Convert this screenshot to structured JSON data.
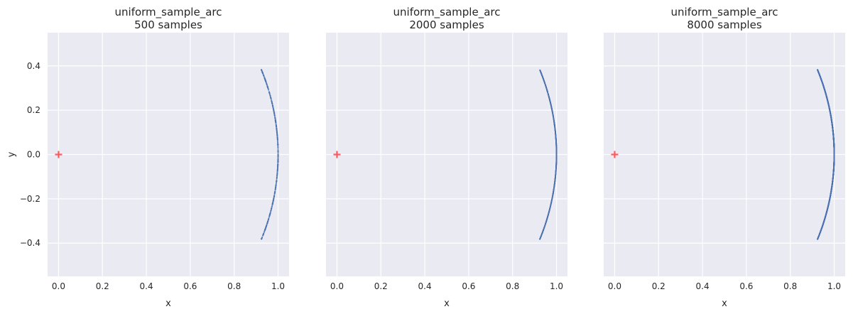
{
  "colors": {
    "plot_background": "#eaeaf2",
    "grid": "#ffffff",
    "sample_points": "#4c72b0",
    "origin_marker": "#ff5a5f",
    "text": "#262626"
  },
  "chart_data": [
    {
      "type": "scatter",
      "title_line1": "uniform_sample_arc",
      "title_line2": "500 samples",
      "xlabel": "x",
      "ylabel": "y",
      "xlim": [
        -0.05,
        1.05
      ],
      "ylim": [
        -0.55,
        0.55
      ],
      "xticks": [
        0.0,
        0.2,
        0.4,
        0.6,
        0.8,
        1.0
      ],
      "xtick_labels": [
        "0.0",
        "0.2",
        "0.4",
        "0.6",
        "0.8",
        "1.0"
      ],
      "yticks": [
        0.4,
        0.2,
        0.0,
        -0.2,
        -0.4
      ],
      "ytick_labels": [
        "0.4",
        "0.2",
        "0.0",
        "−0.2",
        "−0.4"
      ],
      "grid": true,
      "arc": {
        "radius": 1.0,
        "angle_min_deg": -22.5,
        "angle_max_deg": 22.5
      },
      "n_samples": 500,
      "origin_marker": {
        "x": 0.0,
        "y": 0.0,
        "marker": "+"
      }
    },
    {
      "type": "scatter",
      "title_line1": "uniform_sample_arc",
      "title_line2": "2000 samples",
      "xlabel": "x",
      "ylabel": "",
      "xlim": [
        -0.05,
        1.05
      ],
      "ylim": [
        -0.55,
        0.55
      ],
      "xticks": [
        0.0,
        0.2,
        0.4,
        0.6,
        0.8,
        1.0
      ],
      "xtick_labels": [
        "0.0",
        "0.2",
        "0.4",
        "0.6",
        "0.8",
        "1.0"
      ],
      "yticks": [
        0.4,
        0.2,
        0.0,
        -0.2,
        -0.4
      ],
      "ytick_labels": [],
      "grid": true,
      "arc": {
        "radius": 1.0,
        "angle_min_deg": -22.5,
        "angle_max_deg": 22.5
      },
      "n_samples": 2000,
      "origin_marker": {
        "x": 0.0,
        "y": 0.0,
        "marker": "+"
      }
    },
    {
      "type": "scatter",
      "title_line1": "uniform_sample_arc",
      "title_line2": "8000 samples",
      "xlabel": "x",
      "ylabel": "",
      "xlim": [
        -0.05,
        1.05
      ],
      "ylim": [
        -0.55,
        0.55
      ],
      "xticks": [
        0.0,
        0.2,
        0.4,
        0.6,
        0.8,
        1.0
      ],
      "xtick_labels": [
        "0.0",
        "0.2",
        "0.4",
        "0.6",
        "0.8",
        "1.0"
      ],
      "yticks": [
        0.4,
        0.2,
        0.0,
        -0.2,
        -0.4
      ],
      "ytick_labels": [],
      "grid": true,
      "arc": {
        "radius": 1.0,
        "angle_min_deg": -22.5,
        "angle_max_deg": 22.5
      },
      "n_samples": 8000,
      "origin_marker": {
        "x": 0.0,
        "y": 0.0,
        "marker": "+"
      }
    }
  ]
}
